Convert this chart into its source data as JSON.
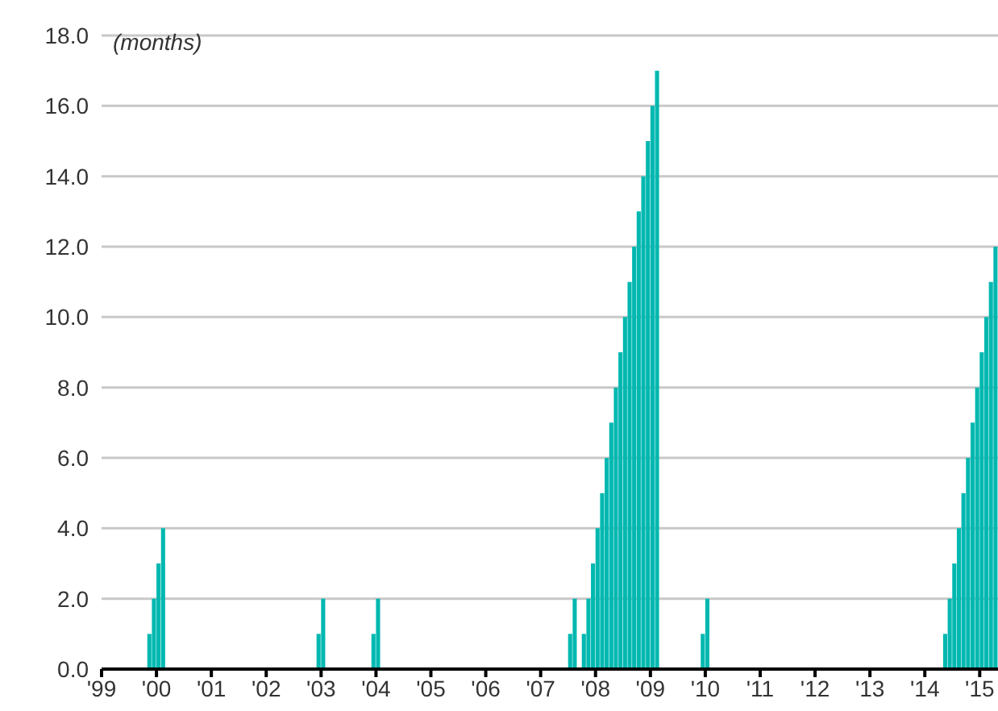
{
  "chart_data": {
    "type": "bar",
    "ylabel": "(months)",
    "x": [
      "1999-11",
      "1999-12",
      "2000-01",
      "2000-02",
      "2002-12",
      "2003-01",
      "2003-12",
      "2004-01",
      "2007-07",
      "2007-08",
      "2007-10",
      "2007-11",
      "2007-12",
      "2008-01",
      "2008-02",
      "2008-03",
      "2008-04",
      "2008-05",
      "2008-06",
      "2008-07",
      "2008-08",
      "2008-09",
      "2008-10",
      "2008-11",
      "2008-12",
      "2009-01",
      "2009-02",
      "2009-12",
      "2010-01",
      "2014-05",
      "2014-06",
      "2014-07",
      "2014-08",
      "2014-09",
      "2014-10",
      "2014-11",
      "2014-12",
      "2015-01",
      "2015-02",
      "2015-03",
      "2015-04"
    ],
    "values": [
      1,
      2,
      3,
      4,
      1,
      2,
      1,
      2,
      1,
      2,
      1,
      2,
      3,
      4,
      5,
      6,
      7,
      8,
      9,
      10,
      11,
      12,
      13,
      14,
      15,
      16,
      17,
      1,
      2,
      1,
      2,
      3,
      4,
      5,
      6,
      7,
      8,
      9,
      10,
      11,
      12
    ],
    "color": "#00b8b0",
    "xlim": [
      "1999-01",
      "2015-05"
    ],
    "xticks": [
      {
        "value": "1999-01",
        "label": "'99"
      },
      {
        "value": "2000-01",
        "label": "'00"
      },
      {
        "value": "2001-01",
        "label": "'01"
      },
      {
        "value": "2002-01",
        "label": "'02"
      },
      {
        "value": "2003-01",
        "label": "'03"
      },
      {
        "value": "2004-01",
        "label": "'04"
      },
      {
        "value": "2005-01",
        "label": "'05"
      },
      {
        "value": "2006-01",
        "label": "'06"
      },
      {
        "value": "2007-01",
        "label": "'07"
      },
      {
        "value": "2008-01",
        "label": "'08"
      },
      {
        "value": "2009-01",
        "label": "'09"
      },
      {
        "value": "2010-01",
        "label": "'10"
      },
      {
        "value": "2011-01",
        "label": "'11"
      },
      {
        "value": "2012-01",
        "label": "'12"
      },
      {
        "value": "2013-01",
        "label": "'13"
      },
      {
        "value": "2014-01",
        "label": "'14"
      },
      {
        "value": "2015-01",
        "label": "'15"
      }
    ],
    "ylim": [
      0,
      18
    ],
    "yticks": [
      {
        "value": 0,
        "label": "0.0"
      },
      {
        "value": 2,
        "label": "2.0"
      },
      {
        "value": 4,
        "label": "4.0"
      },
      {
        "value": 6,
        "label": "6.0"
      },
      {
        "value": 8,
        "label": "8.0"
      },
      {
        "value": 10,
        "label": "10.0"
      },
      {
        "value": 12,
        "label": "12.0"
      },
      {
        "value": 14,
        "label": "14.0"
      },
      {
        "value": 16,
        "label": "16.0"
      },
      {
        "value": 18,
        "label": "18.0"
      }
    ],
    "grid": "y"
  }
}
